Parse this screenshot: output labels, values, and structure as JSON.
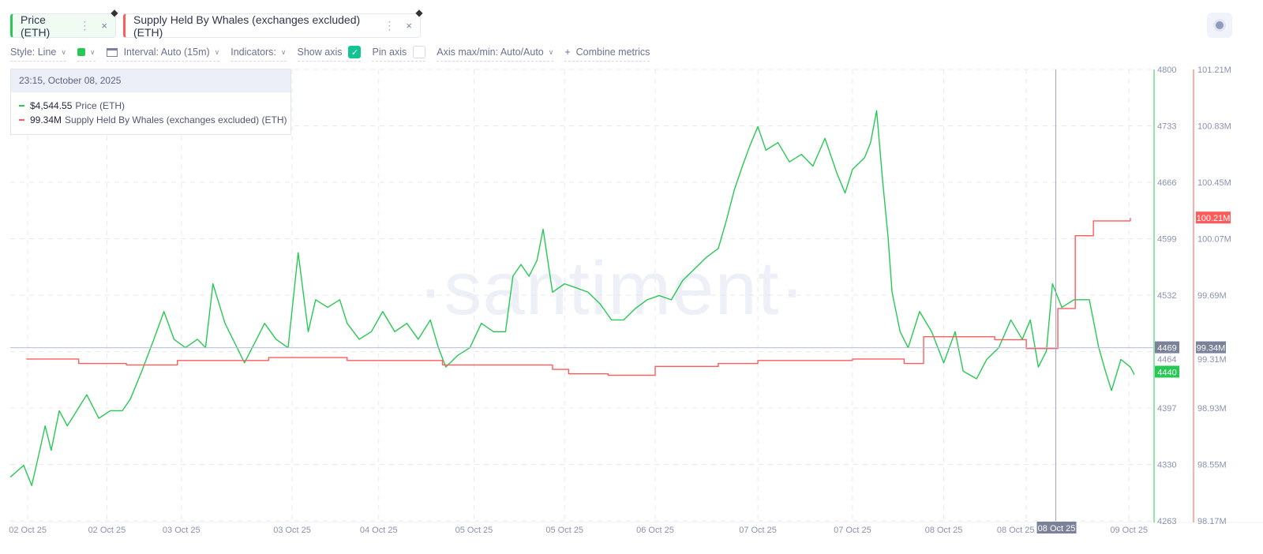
{
  "metrics": [
    {
      "label": "Price (ETH)",
      "color": "#26c953",
      "menu": "⋮",
      "close": "×"
    },
    {
      "label": "Supply Held By Whales (exchanges excluded) (ETH)",
      "color": "#ff5b5b",
      "menu": "⋮",
      "close": "×"
    }
  ],
  "toolbar": {
    "style": "Style: Line",
    "interval": "Interval: Auto (15m)",
    "indicators": "Indicators:",
    "show_axis": "Show axis",
    "show_axis_checked": true,
    "pin_axis": "Pin axis",
    "pin_axis_checked": false,
    "axis_maxmin": "Axis max/min: Auto/Auto",
    "combine": "Combine metrics",
    "color_swatch": "#26c953"
  },
  "tooltip": {
    "date": "23:15, October 08, 2025",
    "price_value": "$4,544.55",
    "price_label": "Price (ETH)",
    "supply_value": "99.34M",
    "supply_label": "Supply Held By Whales (exchanges excluded) (ETH)"
  },
  "watermark": "·santiment·",
  "chart_data": {
    "type": "line",
    "x_unit": "hours since start",
    "xlim": [
      0,
      167.5
    ],
    "x_ticks": [
      {
        "t": 2.6,
        "label": "02 Oct 25"
      },
      {
        "t": 14.4,
        "label": "02 Oct 25"
      },
      {
        "t": 25.5,
        "label": "03 Oct 25"
      },
      {
        "t": 42,
        "label": "03 Oct 25"
      },
      {
        "t": 54.9,
        "label": "04 Oct 25"
      },
      {
        "t": 69.1,
        "label": "05 Oct 25"
      },
      {
        "t": 82.6,
        "label": "05 Oct 25"
      },
      {
        "t": 96.1,
        "label": "06 Oct 25"
      },
      {
        "t": 111.4,
        "label": "07 Oct 25"
      },
      {
        "t": 125.5,
        "label": "07 Oct 25"
      },
      {
        "t": 139.1,
        "label": "08 Oct 25"
      },
      {
        "t": 151.4,
        "label": "08 Oct 25"
      },
      {
        "t": 166.7,
        "label": "09 Oct 25"
      }
    ],
    "crosshair": {
      "t": 155.8,
      "x_label": "08 Oct 25",
      "price_label": "4469",
      "price": 4469,
      "supply_label": "99.34M"
    },
    "price_axis": {
      "ylim": [
        4263,
        4800
      ],
      "ticks": [
        "4800",
        "4733",
        "4666",
        "4599",
        "4532",
        "4464",
        "4397",
        "4330",
        "4263"
      ],
      "last_label": "4440",
      "last": 4440,
      "color": "#26c953"
    },
    "supply_axis": {
      "ylim": [
        98.17,
        101.21
      ],
      "ticks": [
        "101.21M",
        "100.83M",
        "100.45M",
        "100.07M",
        "99.69M",
        "99.31M",
        "98.93M",
        "98.55M",
        "98.17M"
      ],
      "last_label": "100.21M",
      "last": 100.21,
      "color": "#ff5b5b"
    },
    "series": [
      {
        "name": "Price (ETH)",
        "color": "#26c953",
        "step": false,
        "t": [
          0,
          2,
          3.2,
          4.4,
          5.2,
          6.1,
          7.3,
          8.5,
          9.6,
          11.4,
          13.2,
          14.9,
          16.7,
          17.9,
          19.6,
          21.4,
          22.9,
          24.4,
          26.1,
          27.9,
          29.1,
          30.2,
          32,
          33.8,
          34.9,
          36.7,
          37.9,
          39.6,
          41.4,
          42.9,
          44.4,
          45.5,
          47.3,
          49.1,
          50.2,
          52,
          53.8,
          55.5,
          57.3,
          59.1,
          60.8,
          62.6,
          63.8,
          64.9,
          66.7,
          68.5,
          70.2,
          72,
          73.8,
          74.9,
          76.1,
          77.3,
          78.5,
          79.4,
          80.8,
          82.6,
          84.4,
          86.1,
          87.9,
          89.6,
          91.4,
          93.2,
          94.9,
          96.7,
          98.5,
          100.2,
          102,
          103.8,
          105.5,
          106.7,
          107.9,
          109.1,
          110.2,
          111.4,
          112.6,
          114.4,
          116.1,
          117.9,
          119.6,
          121.4,
          123.2,
          124.4,
          125.5,
          127.3,
          128.2,
          129.1,
          130,
          130.8,
          131.4,
          132.6,
          133.8,
          135.5,
          137.3,
          139.1,
          140.8,
          142,
          144,
          145.5,
          147.3,
          149.1,
          150.8,
          152,
          153.2,
          154.4,
          155.3,
          156.7,
          158.5,
          160.8,
          162.2,
          163.2,
          164.1,
          165.5,
          166.9,
          167.5
        ],
        "values": [
          4315,
          4329,
          4305,
          4347,
          4376,
          4347,
          4394,
          4376,
          4390,
          4413,
          4385,
          4394,
          4394,
          4408,
          4441,
          4479,
          4512,
          4479,
          4469,
          4479,
          4469,
          4545,
          4498,
          4469,
          4451,
          4479,
          4498,
          4479,
          4469,
          4582,
          4488,
          4526,
          4517,
          4526,
          4498,
          4479,
          4488,
          4512,
          4488,
          4498,
          4479,
          4502,
          4469,
          4446,
          4460,
          4469,
          4498,
          4488,
          4488,
          4554,
          4568,
          4554,
          4573,
          4610,
          4535,
          4545,
          4540,
          4535,
          4521,
          4502,
          4502,
          4516,
          4526,
          4531,
          4526,
          4549,
          4563,
          4577,
          4587,
          4620,
          4657,
          4685,
          4709,
          4732,
          4704,
          4713,
          4690,
          4699,
          4685,
          4718,
          4676,
          4653,
          4681,
          4695,
          4713,
          4751,
          4667,
          4601,
          4535,
          4488,
          4469,
          4512,
          4488,
          4451,
          4488,
          4441,
          4432,
          4455,
          4469,
          4502,
          4479,
          4502,
          4446,
          4465,
          4545,
          4517,
          4526,
          4526,
          4469,
          4441,
          4418,
          4455,
          4446,
          4437
        ]
      },
      {
        "name": "Supply Held By Whales (exchanges excluded) (ETH)",
        "color": "#ff5b5b",
        "step": true,
        "t": [
          2.4,
          10.2,
          17.3,
          24.9,
          38.5,
          50.2,
          64.4,
          80.8,
          83.2,
          89.1,
          96.1,
          105.5,
          111.4,
          125.5,
          133.2,
          136.1,
          146.7,
          151.4,
          156.1,
          158.7,
          161.4,
          166.9
        ],
        "values": [
          99.26,
          99.23,
          99.22,
          99.25,
          99.27,
          99.25,
          99.22,
          99.19,
          99.16,
          99.15,
          99.21,
          99.23,
          99.25,
          99.26,
          99.23,
          99.41,
          99.39,
          99.33,
          99.6,
          100.09,
          100.19,
          100.21
        ]
      }
    ]
  }
}
